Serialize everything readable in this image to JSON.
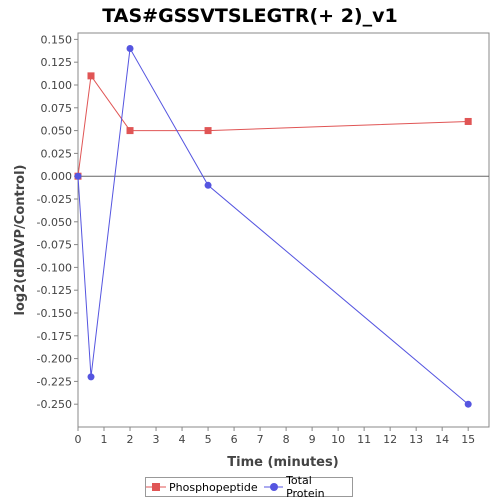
{
  "chart_data": {
    "type": "line",
    "title": "TAS#GSSVTSLEGTR(+ 2)_v1",
    "xlabel": "Time (minutes)",
    "ylabel": "log2(dDAVP/Control)",
    "xlim": [
      0,
      15.8
    ],
    "ylim": [
      -0.275,
      0.157
    ],
    "x_ticks": [
      0,
      1,
      2,
      3,
      4,
      5,
      6,
      7,
      8,
      9,
      10,
      11,
      12,
      13,
      14,
      15
    ],
    "y_ticks": [
      0.15,
      0.125,
      0.1,
      0.075,
      0.05,
      0.025,
      0.0,
      -0.025,
      -0.05,
      -0.075,
      -0.1,
      -0.125,
      -0.15,
      -0.175,
      -0.2,
      -0.225,
      -0.25
    ],
    "y_tick_labels": [
      "0.150",
      "0.125",
      "0.100",
      "0.075",
      "0.050",
      "0.025",
      "0.000",
      "-0.025",
      "-0.050",
      "-0.075",
      "-0.100",
      "-0.125",
      "-0.150",
      "-0.175",
      "-0.200",
      "-0.225",
      "-0.250"
    ],
    "grid": false,
    "zero_line": true,
    "legend_position": "bottom",
    "series": [
      {
        "name": "Phosphopeptide",
        "color": "#e05555",
        "marker": "square",
        "x": [
          0,
          0.5,
          2,
          5,
          15
        ],
        "y": [
          0.0,
          0.11,
          0.05,
          0.05,
          0.06
        ]
      },
      {
        "name": "Total Protein",
        "color": "#5555e0",
        "marker": "circle",
        "x": [
          0,
          0.5,
          2,
          5,
          15
        ],
        "y": [
          0.0,
          -0.22,
          0.14,
          -0.01,
          -0.25
        ]
      }
    ]
  }
}
